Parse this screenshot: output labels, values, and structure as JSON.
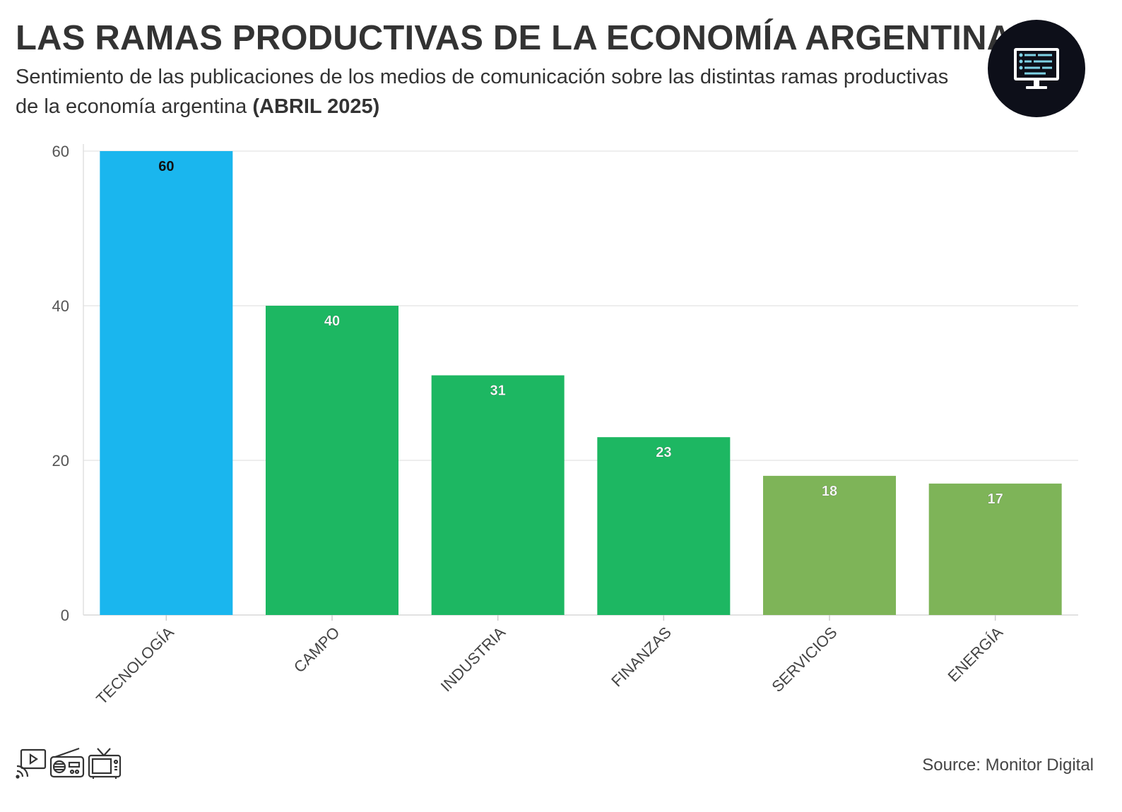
{
  "header": {
    "title": "LAS RAMAS PRODUCTIVAS DE LA ECONOMÍA ARGENTINA",
    "subtitle_text": "Sentimiento de las publicaciones de los medios de comunicación sobre las distintas ramas productivas de la economía argentina ",
    "subtitle_bold": "(ABRIL 2025)",
    "logo_icon": "monitor-icon"
  },
  "chart_data": {
    "type": "bar",
    "title": "",
    "xlabel": "",
    "ylabel": "",
    "categories": [
      "TECNOLOGÍA",
      "CAMPO",
      "INDUSTRIA",
      "FINANZAS",
      "SERVICIOS",
      "ENERGÍA"
    ],
    "values": [
      60,
      40,
      31,
      23,
      18,
      17
    ],
    "colors": [
      "#1ab6ee",
      "#1db762",
      "#1db762",
      "#1db762",
      "#7eb458",
      "#7eb458"
    ],
    "ylim": [
      0,
      60
    ],
    "yticks": [
      "0",
      "20",
      "40",
      "60"
    ],
    "grid": true,
    "data_labels": true,
    "legend": "none"
  },
  "footer": {
    "icons": [
      "media-stream-icon",
      "radio-icon",
      "tv-icon"
    ],
    "source": "Source: Monitor Digital"
  }
}
